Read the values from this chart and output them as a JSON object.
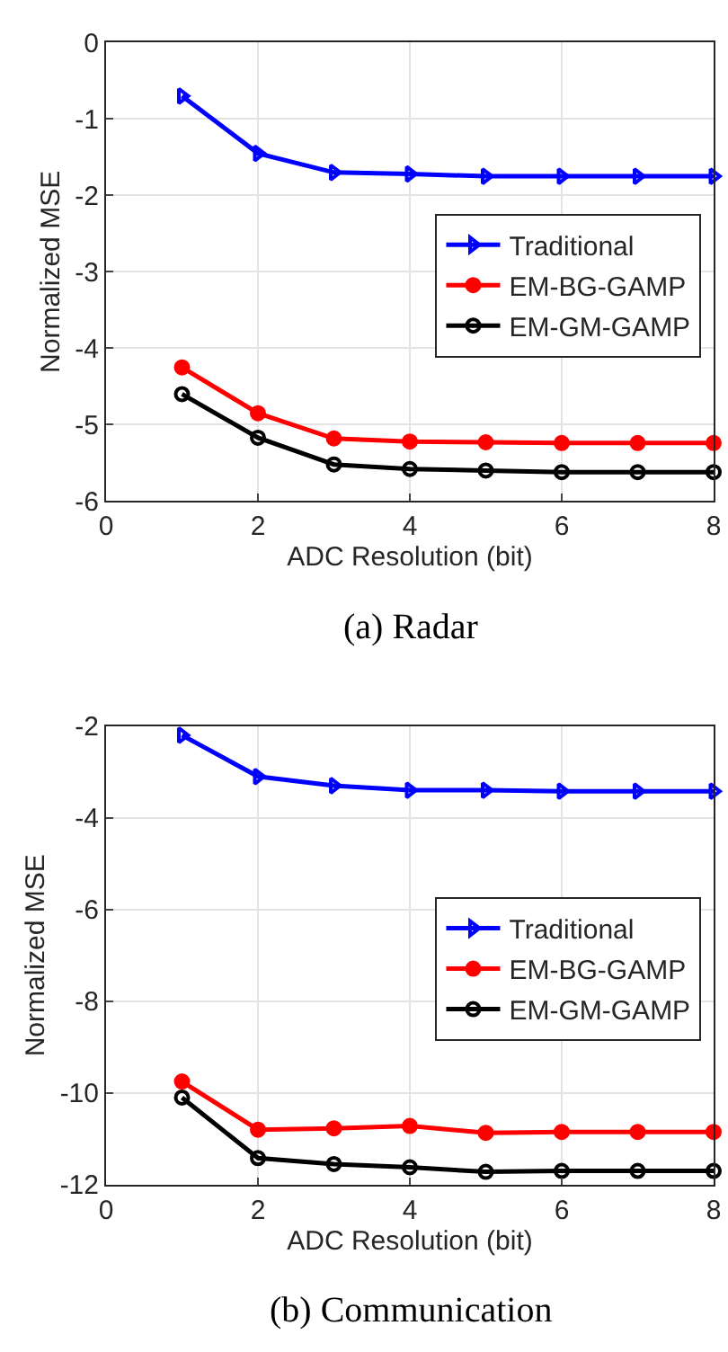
{
  "chart_data": [
    {
      "type": "line",
      "title": "(a) Radar",
      "xlabel": "ADC Resolution (bit)",
      "ylabel": "Normalized MSE",
      "x": [
        1,
        2,
        3,
        4,
        5,
        6,
        7,
        8
      ],
      "xlim": [
        0,
        8
      ],
      "xticks": [
        0,
        2,
        4,
        6,
        8
      ],
      "ylim": [
        -6,
        0
      ],
      "yticks": [
        -6,
        -5,
        -4,
        -3,
        -2,
        -1,
        0
      ],
      "grid": true,
      "legend": "right",
      "series": [
        {
          "name": "Traditional",
          "color": "#0000ff",
          "marker": "triangle",
          "values": [
            -0.7,
            -1.45,
            -1.7,
            -1.72,
            -1.75,
            -1.75,
            -1.75,
            -1.75
          ]
        },
        {
          "name": "EM-BG-GAMP",
          "color": "#ff0000",
          "marker": "circle",
          "values": [
            -4.25,
            -4.85,
            -5.18,
            -5.22,
            -5.23,
            -5.24,
            -5.24,
            -5.24
          ]
        },
        {
          "name": "EM-GM-GAMP",
          "color": "#000000",
          "marker": "circle",
          "values": [
            -4.6,
            -5.17,
            -5.52,
            -5.58,
            -5.6,
            -5.62,
            -5.62,
            -5.62
          ]
        }
      ]
    },
    {
      "type": "line",
      "title": "(b) Communication",
      "xlabel": "ADC Resolution (bit)",
      "ylabel": "Normalized MSE",
      "x": [
        1,
        2,
        3,
        4,
        5,
        6,
        7,
        8
      ],
      "xlim": [
        0,
        8
      ],
      "xticks": [
        0,
        2,
        4,
        6,
        8
      ],
      "ylim": [
        -12,
        -2
      ],
      "yticks": [
        -12,
        -10,
        -8,
        -6,
        -4,
        -2
      ],
      "grid": true,
      "legend": "right",
      "series": [
        {
          "name": "Traditional",
          "color": "#0000ff",
          "marker": "triangle",
          "values": [
            -2.2,
            -3.1,
            -3.3,
            -3.4,
            -3.4,
            -3.42,
            -3.42,
            -3.42
          ]
        },
        {
          "name": "EM-BG-GAMP",
          "color": "#ff0000",
          "marker": "circle",
          "values": [
            -9.75,
            -10.8,
            -10.77,
            -10.72,
            -10.87,
            -10.85,
            -10.85,
            -10.85
          ]
        },
        {
          "name": "EM-GM-GAMP",
          "color": "#000000",
          "marker": "circle",
          "values": [
            -10.1,
            -11.42,
            -11.55,
            -11.62,
            -11.72,
            -11.7,
            -11.7,
            -11.7
          ]
        }
      ]
    }
  ]
}
